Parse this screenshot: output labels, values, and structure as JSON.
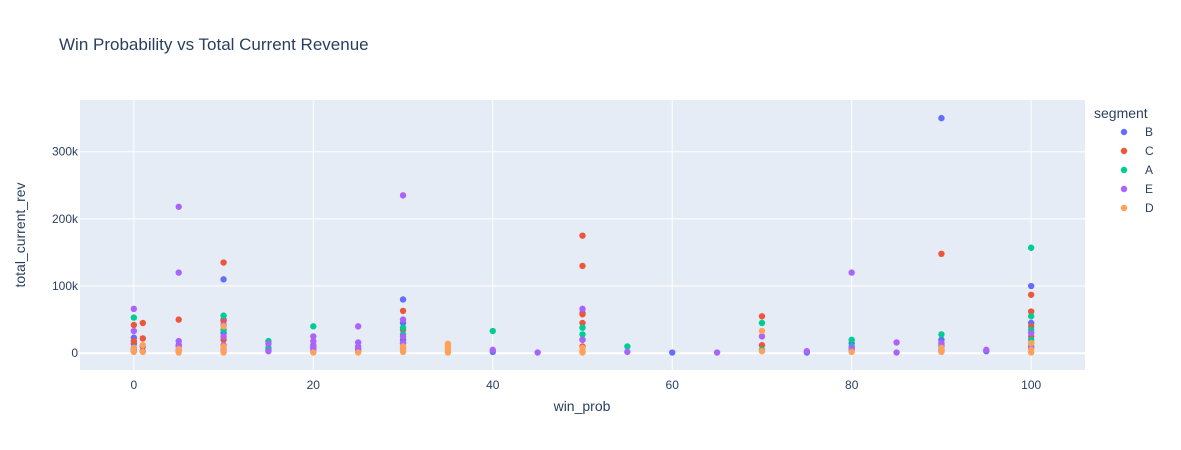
{
  "chart_data": {
    "type": "scatter",
    "title": "Win Probability vs Total Current Revenue",
    "xlabel": "win_prob",
    "ylabel": "total_current_rev",
    "xlim": [
      -6,
      106
    ],
    "ylim": [
      -25000,
      377000
    ],
    "x_ticks": [
      0,
      20,
      40,
      60,
      80,
      100
    ],
    "x_tick_labels": [
      "0",
      "20",
      "40",
      "60",
      "80",
      "100"
    ],
    "y_ticks": [
      0,
      100000,
      200000,
      300000
    ],
    "y_tick_labels": [
      "0",
      "100k",
      "200k",
      "300k"
    ],
    "grid": true,
    "legend_title": "segment",
    "legend_position": "right",
    "series": [
      {
        "name": "B",
        "color": "#636efa",
        "points": [
          [
            0,
            23000
          ],
          [
            0,
            14000
          ],
          [
            0,
            8000
          ],
          [
            1,
            10000
          ],
          [
            5,
            12000
          ],
          [
            10,
            110000
          ],
          [
            10,
            50000
          ],
          [
            10,
            30000
          ],
          [
            15,
            5000
          ],
          [
            20,
            9000
          ],
          [
            25,
            6000
          ],
          [
            30,
            80000
          ],
          [
            30,
            45000
          ],
          [
            30,
            20000
          ],
          [
            40,
            2000
          ],
          [
            50,
            60000
          ],
          [
            50,
            20000
          ],
          [
            60,
            1000
          ],
          [
            75,
            1000
          ],
          [
            80,
            15000
          ],
          [
            80,
            5000
          ],
          [
            90,
            350000
          ],
          [
            90,
            20000
          ],
          [
            90,
            5000
          ],
          [
            95,
            3000
          ],
          [
            100,
            100000
          ],
          [
            100,
            45000
          ],
          [
            100,
            15000
          ]
        ]
      },
      {
        "name": "C",
        "color": "#ef553b",
        "points": [
          [
            0,
            42000
          ],
          [
            0,
            18000
          ],
          [
            1,
            45000
          ],
          [
            1,
            22000
          ],
          [
            1,
            3000
          ],
          [
            5,
            50000
          ],
          [
            10,
            135000
          ],
          [
            10,
            48000
          ],
          [
            10,
            20000
          ],
          [
            30,
            63000
          ],
          [
            30,
            35000
          ],
          [
            30,
            15000
          ],
          [
            50,
            175000
          ],
          [
            50,
            130000
          ],
          [
            50,
            58000
          ],
          [
            50,
            45000
          ],
          [
            50,
            10000
          ],
          [
            70,
            55000
          ],
          [
            70,
            12000
          ],
          [
            90,
            148000
          ],
          [
            90,
            10000
          ],
          [
            100,
            87000
          ],
          [
            100,
            62000
          ],
          [
            100,
            40000
          ],
          [
            100,
            25000
          ]
        ]
      },
      {
        "name": "A",
        "color": "#00cc96",
        "points": [
          [
            0,
            53000
          ],
          [
            0,
            5000
          ],
          [
            10,
            56000
          ],
          [
            10,
            35000
          ],
          [
            15,
            18000
          ],
          [
            15,
            8000
          ],
          [
            20,
            40000
          ],
          [
            30,
            38000
          ],
          [
            30,
            28000
          ],
          [
            40,
            33000
          ],
          [
            50,
            38000
          ],
          [
            50,
            28000
          ],
          [
            55,
            10000
          ],
          [
            70,
            45000
          ],
          [
            70,
            5000
          ],
          [
            80,
            20000
          ],
          [
            80,
            10000
          ],
          [
            90,
            28000
          ],
          [
            90,
            12000
          ],
          [
            100,
            157000
          ],
          [
            100,
            55000
          ],
          [
            100,
            35000
          ],
          [
            100,
            20000
          ],
          [
            100,
            10000
          ]
        ]
      },
      {
        "name": "E",
        "color": "#ab63fa",
        "points": [
          [
            0,
            66000
          ],
          [
            0,
            33000
          ],
          [
            0,
            3000
          ],
          [
            5,
            218000
          ],
          [
            5,
            120000
          ],
          [
            5,
            18000
          ],
          [
            5,
            10000
          ],
          [
            5,
            4000
          ],
          [
            10,
            42000
          ],
          [
            10,
            25000
          ],
          [
            10,
            12000
          ],
          [
            10,
            5000
          ],
          [
            15,
            14000
          ],
          [
            15,
            3000
          ],
          [
            20,
            25000
          ],
          [
            20,
            18000
          ],
          [
            20,
            12000
          ],
          [
            20,
            6000
          ],
          [
            20,
            2000
          ],
          [
            25,
            40000
          ],
          [
            25,
            16000
          ],
          [
            25,
            10000
          ],
          [
            25,
            3000
          ],
          [
            30,
            235000
          ],
          [
            30,
            50000
          ],
          [
            30,
            25000
          ],
          [
            30,
            15000
          ],
          [
            30,
            8000
          ],
          [
            40,
            5000
          ],
          [
            45,
            1000
          ],
          [
            50,
            66000
          ],
          [
            50,
            20000
          ],
          [
            55,
            2000
          ],
          [
            65,
            1000
          ],
          [
            70,
            25000
          ],
          [
            75,
            3000
          ],
          [
            80,
            120000
          ],
          [
            80,
            8000
          ],
          [
            85,
            16000
          ],
          [
            85,
            1000
          ],
          [
            90,
            15000
          ],
          [
            90,
            3000
          ],
          [
            95,
            5000
          ],
          [
            100,
            30000
          ],
          [
            100,
            8000
          ]
        ]
      },
      {
        "name": "D",
        "color": "#ffa15a",
        "points": [
          [
            0,
            8000
          ],
          [
            0,
            2000
          ],
          [
            1,
            12000
          ],
          [
            1,
            2000
          ],
          [
            5,
            6000
          ],
          [
            5,
            1000
          ],
          [
            10,
            40000
          ],
          [
            10,
            10000
          ],
          [
            10,
            3000
          ],
          [
            10,
            1000
          ],
          [
            20,
            1000
          ],
          [
            25,
            1000
          ],
          [
            30,
            10000
          ],
          [
            30,
            5000
          ],
          [
            30,
            2000
          ],
          [
            35,
            14000
          ],
          [
            35,
            10000
          ],
          [
            35,
            7000
          ],
          [
            35,
            4000
          ],
          [
            35,
            1000
          ],
          [
            50,
            8000
          ],
          [
            50,
            3000
          ],
          [
            50,
            1000
          ],
          [
            70,
            33000
          ],
          [
            70,
            3000
          ],
          [
            80,
            2000
          ],
          [
            90,
            8000
          ],
          [
            90,
            2000
          ],
          [
            100,
            15000
          ],
          [
            100,
            5000
          ],
          [
            100,
            1000
          ]
        ]
      }
    ]
  }
}
